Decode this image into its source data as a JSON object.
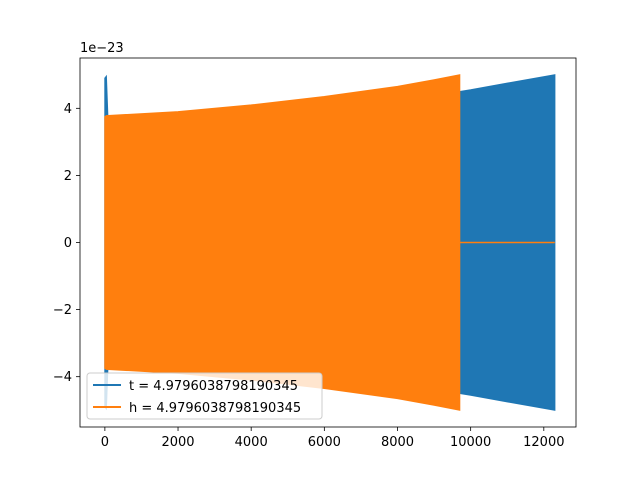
{
  "chart_data": {
    "type": "line",
    "title": "",
    "xlabel": "",
    "ylabel": "",
    "y_offset_text": "1e−23",
    "xlim": [
      -680,
      12880
    ],
    "ylim": [
      -5.5,
      5.5
    ],
    "x_ticks": [
      {
        "value": 0,
        "label": "0"
      },
      {
        "value": 2000,
        "label": "2000"
      },
      {
        "value": 4000,
        "label": "4000"
      },
      {
        "value": 6000,
        "label": "6000"
      },
      {
        "value": 8000,
        "label": "8000"
      },
      {
        "value": 10000,
        "label": "10000"
      },
      {
        "value": 12000,
        "label": "12000"
      }
    ],
    "y_ticks": [
      {
        "value": -4,
        "label": "−4"
      },
      {
        "value": -2,
        "label": "−2"
      },
      {
        "value": 0,
        "label": "0"
      },
      {
        "value": 2,
        "label": "2"
      },
      {
        "value": 4,
        "label": "4"
      }
    ],
    "grid": false,
    "legend_position": "lower-left",
    "series": [
      {
        "name": "t = 4.9796038798190345",
        "color": "#1f77b4",
        "envelope_x": [
          0,
          40,
          80,
          2000,
          4000,
          6000,
          8000,
          9600,
          10000,
          11000,
          12300
        ],
        "envelope_upper": [
          4.9,
          4.95,
          3.75,
          3.85,
          4.0,
          4.2,
          4.45,
          4.48,
          4.55,
          4.75,
          5.0
        ],
        "envelope_lower": [
          -4.9,
          -4.95,
          -3.75,
          -3.85,
          -4.0,
          -4.2,
          -4.45,
          -4.48,
          -4.55,
          -4.75,
          -5.0
        ]
      },
      {
        "name": "h = 4.9796038798190345",
        "color": "#ff7f0e",
        "envelope_x": [
          0,
          40,
          2000,
          4000,
          6000,
          8000,
          9000,
          9700
        ],
        "envelope_upper": [
          3.75,
          3.78,
          3.9,
          4.1,
          4.35,
          4.65,
          4.85,
          5.0
        ],
        "envelope_lower": [
          -3.75,
          -3.78,
          -3.9,
          -4.1,
          -4.35,
          -4.65,
          -4.85,
          -5.0
        ],
        "flat_segment_x": [
          9700,
          12300
        ],
        "flat_value": 0
      }
    ]
  }
}
